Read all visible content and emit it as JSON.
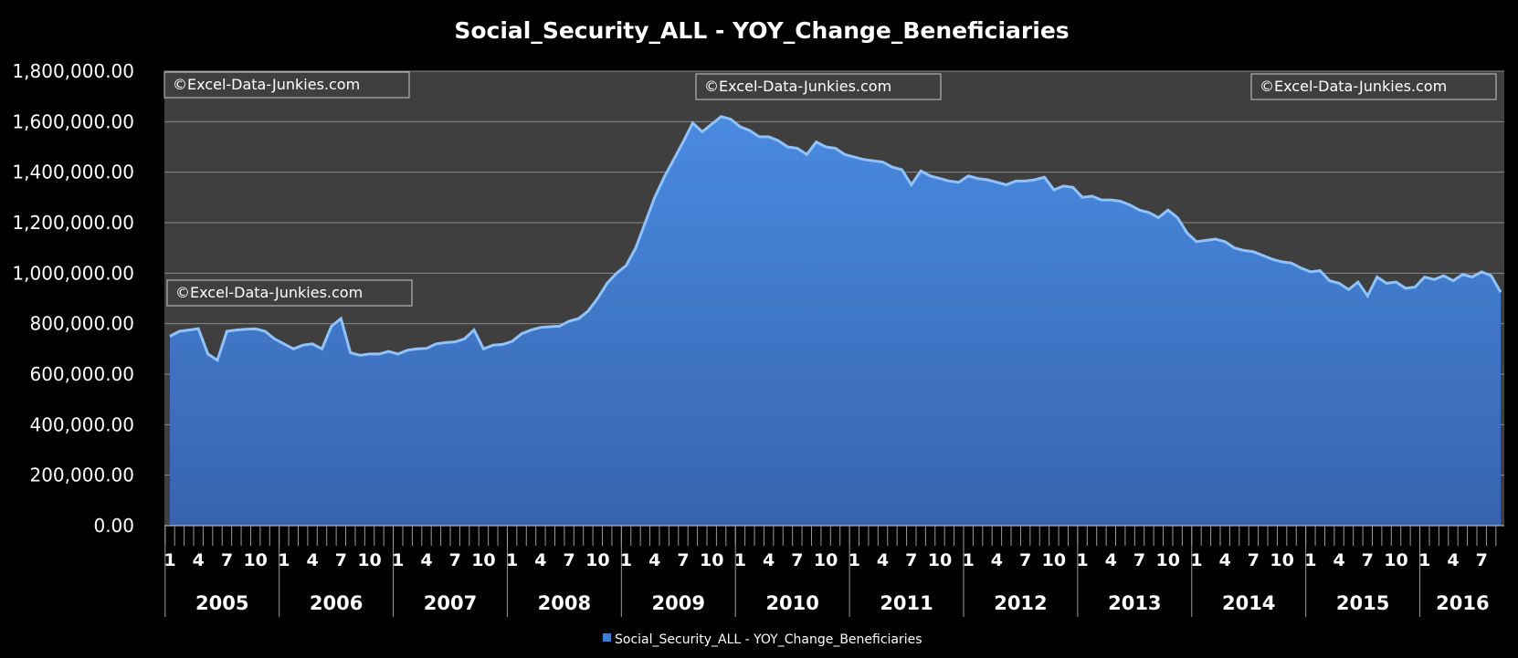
{
  "chart_data": {
    "type": "area",
    "title": "Social_Security_ALL - YOY_Change_Beneficiaries",
    "ylim": [
      0,
      1800000
    ],
    "y_ticks": [
      "0.00",
      "200,000.00",
      "400,000.00",
      "600,000.00",
      "800,000.00",
      "1,000,000.00",
      "1,200,000.00",
      "1,400,000.00",
      "1,600,000.00",
      "1,800,000.00"
    ],
    "years": [
      "2005",
      "2006",
      "2007",
      "2008",
      "2009",
      "2010",
      "2011",
      "2012",
      "2013",
      "2014",
      "2015",
      "2016"
    ],
    "month_ticks": [
      "1",
      "4",
      "7",
      "10"
    ],
    "months_2016": 9,
    "grid": true,
    "legend_position": "bottom",
    "fill_color": "#3f7fd3",
    "series": [
      {
        "name": "Social_Security_ALL - YOY_Change_Beneficiaries",
        "values": [
          750000,
          770000,
          775000,
          780000,
          680000,
          655000,
          770000,
          775000,
          778000,
          780000,
          770000,
          740000,
          720000,
          700000,
          715000,
          720000,
          700000,
          790000,
          820000,
          685000,
          675000,
          680000,
          680000,
          690000,
          680000,
          695000,
          700000,
          702000,
          720000,
          725000,
          728000,
          740000,
          775000,
          700000,
          715000,
          718000,
          730000,
          760000,
          775000,
          785000,
          788000,
          790000,
          810000,
          820000,
          850000,
          900000,
          960000,
          1000000,
          1030000,
          1100000,
          1200000,
          1300000,
          1380000,
          1450000,
          1520000,
          1595000,
          1560000,
          1590000,
          1620000,
          1610000,
          1580000,
          1565000,
          1540000,
          1540000,
          1525000,
          1500000,
          1495000,
          1470000,
          1520000,
          1500000,
          1495000,
          1470000,
          1460000,
          1450000,
          1445000,
          1440000,
          1420000,
          1410000,
          1350000,
          1405000,
          1385000,
          1375000,
          1365000,
          1360000,
          1385000,
          1375000,
          1370000,
          1360000,
          1350000,
          1365000,
          1365000,
          1370000,
          1380000,
          1330000,
          1345000,
          1340000,
          1300000,
          1305000,
          1290000,
          1290000,
          1285000,
          1270000,
          1250000,
          1240000,
          1220000,
          1250000,
          1220000,
          1160000,
          1125000,
          1130000,
          1135000,
          1125000,
          1100000,
          1090000,
          1085000,
          1070000,
          1055000,
          1045000,
          1040000,
          1020000,
          1005000,
          1010000,
          970000,
          960000,
          935000,
          965000,
          910000,
          985000,
          960000,
          965000,
          940000,
          945000,
          985000,
          975000,
          990000,
          970000,
          995000,
          985000,
          1005000,
          990000,
          925000
        ]
      }
    ],
    "watermarks": [
      "©Excel-Data-Junkies.com",
      "©Excel-Data-Junkies.com",
      "©Excel-Data-Junkies.com",
      "©Excel-Data-Junkies.com"
    ]
  }
}
